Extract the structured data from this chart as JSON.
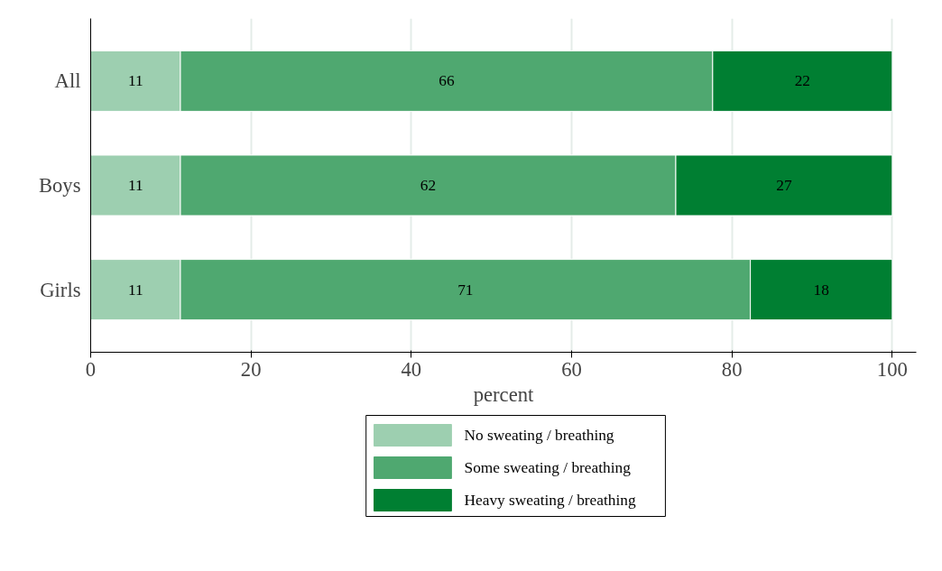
{
  "chart_data": {
    "type": "bar",
    "orientation": "horizontal",
    "stacked": true,
    "xlabel": "percent",
    "categories": [
      "All",
      "Boys",
      "Girls"
    ],
    "series": [
      {
        "name": "No sweating / breathing",
        "color": "#9dcfb0",
        "values": [
          11.2,
          11.2,
          11.2
        ],
        "value_labels": [
          "11",
          "11",
          "11"
        ]
      },
      {
        "name": "Some sweating / breathing",
        "color": "#4fa870",
        "values": [
          66.4,
          61.8,
          71.1
        ],
        "value_labels": [
          "66",
          "62",
          "71"
        ]
      },
      {
        "name": "Heavy sweating / breathing",
        "color": "#007f32",
        "values": [
          22.4,
          27.0,
          17.7
        ],
        "value_labels": [
          "22",
          "27",
          "18"
        ]
      }
    ],
    "xlim": [
      0,
      103
    ],
    "xticks": [
      0,
      20,
      40,
      60,
      80,
      100
    ],
    "grid": "x",
    "legend": "bottom"
  }
}
